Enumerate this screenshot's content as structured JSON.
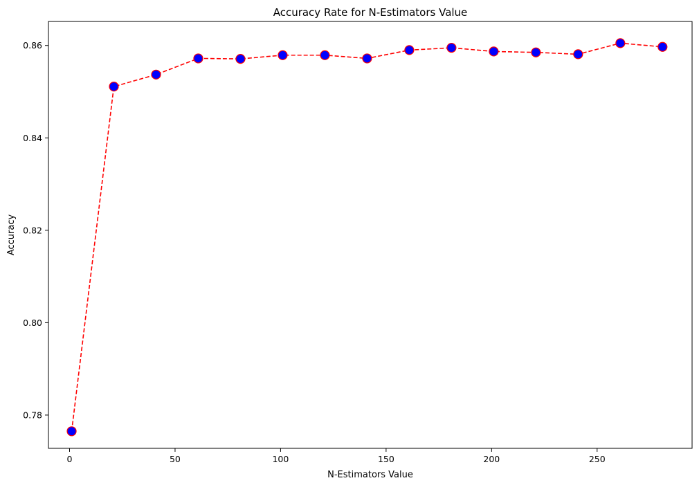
{
  "chart_data": {
    "type": "line",
    "title": "Accuracy Rate for N-Estimators Value",
    "xlabel": "N-Estimators Value",
    "ylabel": "Accuracy",
    "xlim": [
      -10,
      295
    ],
    "ylim": [
      0.7728,
      0.8652
    ],
    "xticks": [
      0,
      50,
      100,
      150,
      200,
      250
    ],
    "xtick_labels": [
      "0",
      "50",
      "100",
      "150",
      "200",
      "250"
    ],
    "yticks": [
      0.78,
      0.8,
      0.82,
      0.84,
      0.86
    ],
    "ytick_labels": [
      "0.78",
      "0.80",
      "0.82",
      "0.84",
      "0.86"
    ],
    "grid": false,
    "legend": "none",
    "series": [
      {
        "x": [
          1,
          21,
          41,
          61,
          81,
          101,
          121,
          141,
          161,
          181,
          201,
          221,
          241,
          261,
          281
        ],
        "values": [
          0.7765,
          0.8511,
          0.8537,
          0.8572,
          0.8571,
          0.8579,
          0.8579,
          0.8572,
          0.859,
          0.8595,
          0.8587,
          0.8585,
          0.8581,
          0.8605,
          0.8597
        ],
        "line_color": "#ff0000",
        "line_style": "dashed",
        "marker": "circle",
        "marker_face_color": "#0000ff",
        "marker_edge_color": "#ff0000"
      }
    ]
  }
}
